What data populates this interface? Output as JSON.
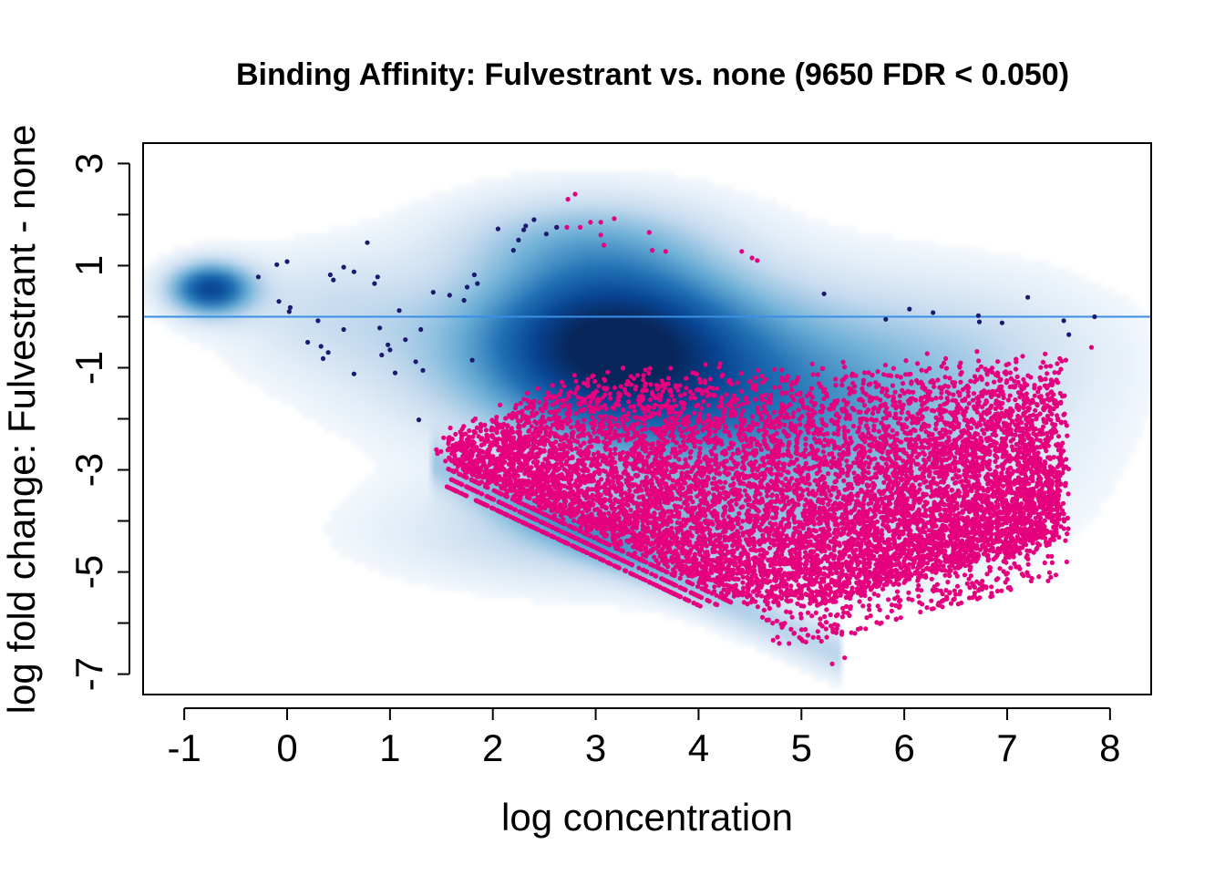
{
  "chart_data": {
    "type": "scatter",
    "title": "Binding Affinity: Fulvestrant vs. none (9650 FDR < 0.050)",
    "xlabel": "log concentration",
    "ylabel": "log fold change: Fulvestrant - none",
    "xlim": [
      -1.4,
      8.4
    ],
    "ylim": [
      -7.4,
      3.4
    ],
    "xticks": [
      -1,
      0,
      1,
      2,
      3,
      4,
      5,
      6,
      7,
      8
    ],
    "yticks": [
      -7,
      -6,
      -5,
      -4,
      -3,
      -2,
      -1,
      0,
      1,
      2,
      3
    ],
    "ytick_labels": [
      {
        "value": 3,
        "label": "3"
      },
      {
        "value": 1,
        "label": "1"
      },
      {
        "value": -1,
        "label": "-1"
      },
      {
        "value": -3,
        "label": "-3"
      },
      {
        "value": -5,
        "label": "-5"
      },
      {
        "value": -7,
        "label": "-7"
      }
    ],
    "reference_line": {
      "y": 0,
      "color": "#3a8ee6"
    },
    "grid": false,
    "legend": "none",
    "colors": {
      "density_dark": "#08306b",
      "density_mid": "#2b6fb0",
      "density_light": "#c6dbef",
      "significant": "#e5007d",
      "nonsignificant": "#1a1a6e"
    },
    "density_regions": [
      {
        "x": -0.75,
        "y": 0.55,
        "sx": 0.28,
        "sy": 0.35,
        "w": 1.0
      },
      {
        "x": 3.1,
        "y": -0.4,
        "sx": 0.85,
        "sy": 1.2,
        "w": 1.0
      },
      {
        "x": 4.0,
        "y": -1.2,
        "sx": 1.3,
        "sy": 1.3,
        "w": 0.55
      },
      {
        "x": 5.5,
        "y": -2.4,
        "sx": 1.3,
        "sy": 1.6,
        "w": 0.35
      },
      {
        "x": 3.2,
        "y": -4.2,
        "sx": 1.4,
        "sy": 0.7,
        "w": 0.35
      },
      {
        "x": 1.5,
        "y": -0.6,
        "sx": 1.0,
        "sy": 1.1,
        "w": 0.18
      },
      {
        "x": 0.3,
        "y": 0.2,
        "sx": 0.7,
        "sy": 0.8,
        "w": 0.16
      },
      {
        "x": 6.8,
        "y": -0.6,
        "sx": 1.0,
        "sy": 1.0,
        "w": 0.14
      },
      {
        "x": 2.8,
        "y": 1.6,
        "sx": 0.9,
        "sy": 0.6,
        "w": 0.25
      }
    ],
    "nonsignificant_points": [
      [
        -0.28,
        0.78
      ],
      [
        -0.1,
        1.02
      ],
      [
        0.0,
        1.08
      ],
      [
        -0.08,
        0.3
      ],
      [
        0.03,
        0.18
      ],
      [
        0.02,
        0.1
      ],
      [
        0.3,
        -0.08
      ],
      [
        0.2,
        -0.5
      ],
      [
        0.33,
        -0.58
      ],
      [
        0.45,
        0.72
      ],
      [
        0.55,
        0.97
      ],
      [
        0.65,
        0.88
      ],
      [
        0.4,
        -0.7
      ],
      [
        0.35,
        -0.82
      ],
      [
        0.42,
        0.82
      ],
      [
        0.55,
        -0.25
      ],
      [
        0.65,
        -1.12
      ],
      [
        0.78,
        1.45
      ],
      [
        0.85,
        0.65
      ],
      [
        0.88,
        0.78
      ],
      [
        0.9,
        -0.22
      ],
      [
        0.92,
        -0.75
      ],
      [
        0.98,
        -0.55
      ],
      [
        1.0,
        -0.65
      ],
      [
        1.05,
        -1.1
      ],
      [
        1.09,
        0.12
      ],
      [
        1.15,
        -0.45
      ],
      [
        1.25,
        -0.88
      ],
      [
        1.3,
        -0.25
      ],
      [
        1.32,
        -1.05
      ],
      [
        1.28,
        -2.02
      ],
      [
        1.42,
        0.48
      ],
      [
        1.58,
        0.42
      ],
      [
        1.72,
        0.32
      ],
      [
        1.75,
        0.58
      ],
      [
        1.82,
        0.82
      ],
      [
        1.85,
        0.65
      ],
      [
        1.8,
        -0.85
      ],
      [
        2.05,
        1.72
      ],
      [
        2.2,
        1.3
      ],
      [
        2.25,
        1.5
      ],
      [
        2.32,
        1.78
      ],
      [
        2.4,
        1.9
      ],
      [
        2.3,
        1.7
      ],
      [
        2.52,
        1.62
      ],
      [
        2.62,
        1.75
      ],
      [
        5.22,
        0.45
      ],
      [
        5.82,
        -0.05
      ],
      [
        6.05,
        0.15
      ],
      [
        6.28,
        0.08
      ],
      [
        6.72,
        0.02
      ],
      [
        6.73,
        -0.1
      ],
      [
        6.95,
        -0.12
      ],
      [
        7.2,
        0.38
      ],
      [
        7.55,
        -0.08
      ],
      [
        7.6,
        -0.35
      ],
      [
        7.85,
        0.0
      ]
    ],
    "significant_summary": {
      "count": 9650,
      "x_range": [
        1.45,
        7.9
      ],
      "y_range": [
        -6.8,
        2.4
      ],
      "outliers": [
        [
          2.8,
          2.4
        ],
        [
          2.73,
          2.3
        ],
        [
          2.62,
          1.75
        ],
        [
          2.72,
          1.75
        ],
        [
          2.85,
          1.75
        ],
        [
          2.95,
          1.85
        ],
        [
          3.05,
          1.6
        ],
        [
          3.08,
          1.4
        ],
        [
          3.18,
          1.92
        ],
        [
          3.05,
          1.85
        ],
        [
          3.52,
          1.65
        ],
        [
          3.55,
          1.3
        ],
        [
          3.68,
          1.28
        ],
        [
          4.42,
          1.28
        ],
        [
          4.52,
          1.15
        ],
        [
          4.57,
          1.1
        ],
        [
          7.82,
          -0.6
        ],
        [
          4.88,
          -6.4
        ],
        [
          5.3,
          -6.8
        ],
        [
          4.98,
          -6.28
        ],
        [
          4.72,
          -6.0
        ],
        [
          4.82,
          -6.05
        ],
        [
          6.9,
          -3.3
        ],
        [
          6.68,
          -4.1
        ],
        [
          6.3,
          -4.85
        ],
        [
          6.52,
          -4.9
        ],
        [
          6.45,
          -4.42
        ],
        [
          5.52,
          -6.2
        ],
        [
          5.42,
          -6.68
        ]
      ]
    }
  }
}
